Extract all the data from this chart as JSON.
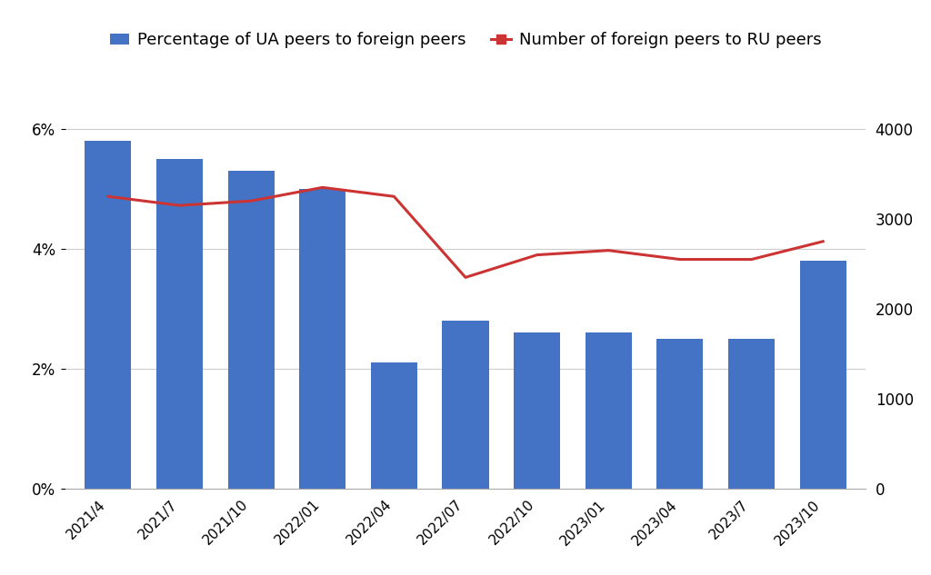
{
  "categories": [
    "2021/4",
    "2021/7",
    "2021/10",
    "2022/01",
    "2022/04",
    "2022/07",
    "2022/10",
    "2023/01",
    "2023/04",
    "2023/7",
    "2023/10"
  ],
  "bar_values": [
    0.058,
    0.055,
    0.053,
    0.05,
    0.021,
    0.028,
    0.026,
    0.026,
    0.025,
    0.025,
    0.038
  ],
  "line_values": [
    3250,
    3150,
    3200,
    3350,
    3250,
    2350,
    2600,
    2650,
    2550,
    2550,
    2750
  ],
  "bar_color": "#4472C4",
  "line_color": "#CC3333",
  "bar_label": "Percentage of UA peers to foreign peers",
  "line_label": "Number of foreign peers to RU peers",
  "ylim_left": [
    0,
    0.07
  ],
  "ylim_right": [
    0,
    4667
  ],
  "yticks_left": [
    0,
    0.02,
    0.04,
    0.06
  ],
  "yticks_right": [
    0,
    1000,
    2000,
    3000,
    4000
  ],
  "background_color": "#ffffff",
  "grid_color": "#cccccc",
  "legend_fontsize": 13,
  "bar_width": 0.65
}
